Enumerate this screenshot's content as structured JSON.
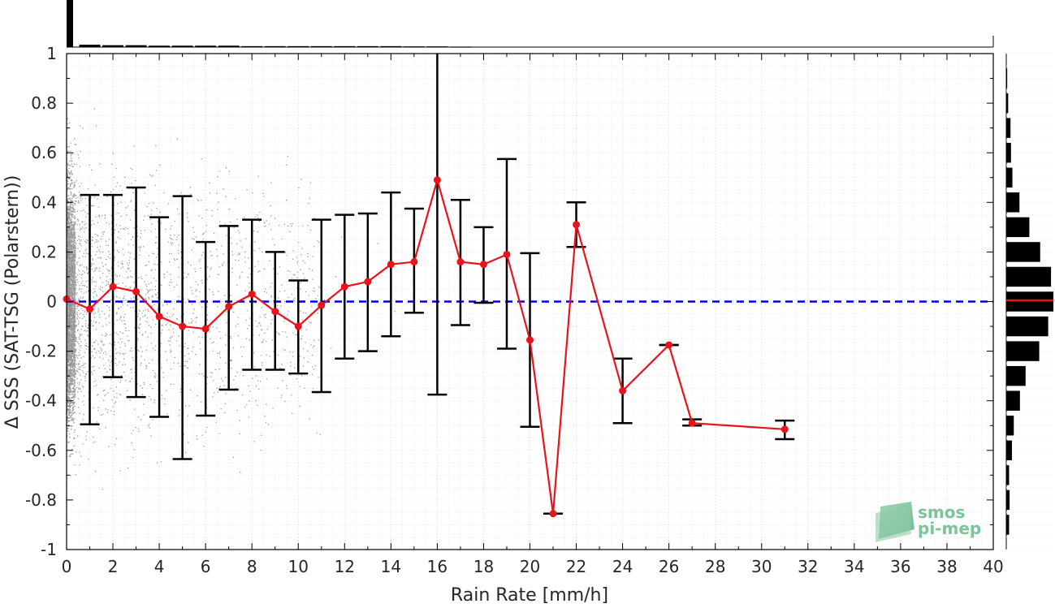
{
  "chart_data": {
    "type": "scatter",
    "title": "",
    "xlabel": "Rain Rate [mm/h]",
    "ylabel": "Δ SSS (SAT-TSG (Polarstern))",
    "xlim": [
      0,
      40
    ],
    "ylim": [
      -1,
      1
    ],
    "x_ticks": [
      0,
      2,
      4,
      6,
      8,
      10,
      12,
      14,
      16,
      18,
      20,
      22,
      24,
      26,
      28,
      30,
      32,
      34,
      36,
      38,
      40
    ],
    "y_ticks": [
      -1,
      -0.8,
      -0.6,
      -0.4,
      -0.2,
      0,
      0.2,
      0.4,
      0.6,
      0.8,
      1
    ],
    "x_tick_labels": [
      "0",
      "2",
      "4",
      "6",
      "8",
      "10",
      "12",
      "14",
      "16",
      "18",
      "20",
      "22",
      "24",
      "26",
      "28",
      "30",
      "32",
      "34",
      "36",
      "38",
      "40"
    ],
    "y_tick_labels": [
      "-1",
      "-0.8",
      "-0.6",
      "-0.4",
      "-0.2",
      "0",
      "0.2",
      "0.4",
      "0.6",
      "0.8",
      "1"
    ],
    "grid": true,
    "zero_line": {
      "y": 0,
      "color": "#0000dd",
      "style": "dashed"
    },
    "series": [
      {
        "type": "line",
        "color": "#e8141b",
        "x": [
          0,
          1,
          2,
          3,
          4,
          5,
          6,
          7,
          8,
          9,
          10,
          11,
          12,
          13,
          14,
          15,
          16,
          17,
          18,
          19,
          20,
          21,
          22,
          24,
          26,
          27,
          31
        ],
        "y": [
          0.01,
          -0.03,
          0.06,
          0.04,
          -0.06,
          -0.1,
          -0.11,
          -0.02,
          0.03,
          -0.04,
          -0.1,
          -0.015,
          0.06,
          0.08,
          0.15,
          0.16,
          0.49,
          0.16,
          0.15,
          0.19,
          -0.155,
          -0.855,
          0.31,
          -0.36,
          -0.175,
          -0.49,
          -0.515
        ],
        "err_low": [
          null,
          -0.495,
          -0.305,
          -0.385,
          -0.465,
          -0.635,
          -0.46,
          -0.355,
          -0.275,
          -0.275,
          -0.29,
          -0.365,
          -0.23,
          -0.2,
          -0.14,
          -0.045,
          -0.375,
          -0.095,
          -0.005,
          -0.19,
          -0.505,
          -0.855,
          0.22,
          -0.49,
          -0.175,
          -0.5,
          -0.555
        ],
        "err_high": [
          null,
          0.43,
          0.43,
          0.46,
          0.34,
          0.425,
          0.24,
          0.305,
          0.33,
          0.2,
          0.085,
          0.33,
          0.35,
          0.355,
          0.44,
          0.375,
          1.0,
          0.41,
          0.3,
          0.575,
          0.195,
          -0.855,
          0.4,
          -0.23,
          -0.175,
          -0.475,
          -0.48
        ]
      }
    ],
    "top_histogram": {
      "color": "#000000",
      "bins_x": [
        0.15,
        1,
        2,
        3,
        4,
        5,
        6,
        7,
        8,
        9,
        10,
        11,
        12,
        13,
        14,
        15,
        16,
        17
      ],
      "relative_height": [
        1.0,
        0.05,
        0.04,
        0.04,
        0.03,
        0.03,
        0.03,
        0.03,
        0.02,
        0.02,
        0.02,
        0.02,
        0.02,
        0.02,
        0.02,
        0.015,
        0.015,
        0.01
      ]
    },
    "right_histogram": {
      "color": "#000000",
      "mean_marker_color": "#e8141b",
      "bins_y": [
        -0.9,
        -0.8,
        -0.7,
        -0.6,
        -0.5,
        -0.4,
        -0.3,
        -0.2,
        -0.1,
        0.0,
        0.1,
        0.2,
        0.3,
        0.4,
        0.5,
        0.6,
        0.7,
        0.8,
        0.9
      ],
      "relative_width": [
        0.06,
        0.07,
        0.06,
        0.12,
        0.16,
        0.29,
        0.41,
        0.7,
        0.89,
        1.0,
        0.95,
        0.72,
        0.49,
        0.28,
        0.13,
        0.1,
        0.09,
        0.04,
        0.02
      ]
    }
  },
  "logo": {
    "line1": "smos",
    "line2": "pi-mep"
  }
}
